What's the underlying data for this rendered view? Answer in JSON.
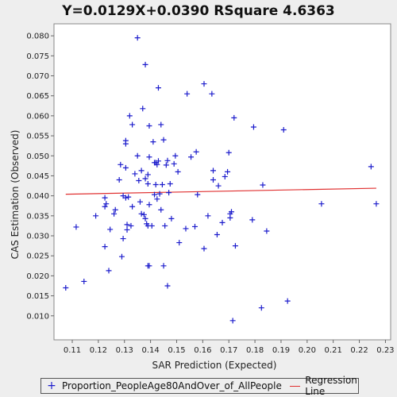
{
  "chart_data": {
    "type": "scatter",
    "title": "Y=0.0129X+0.0390    RSquare 4.6363",
    "xlabel": "SAR Prediction (Expected)",
    "ylabel": "CAS Estimation (Observed)",
    "xlim": [
      0.103,
      0.232
    ],
    "ylim": [
      0.004,
      0.083
    ],
    "x_ticks": [
      "0.11",
      "0.12",
      "0.13",
      "0.14",
      "0.15",
      "0.16",
      "0.17",
      "0.18",
      "0.19",
      "0.20",
      "0.21",
      "0.22",
      "0.23"
    ],
    "y_ticks": [
      "0.010",
      "0.015",
      "0.020",
      "0.025",
      "0.030",
      "0.035",
      "0.040",
      "0.045",
      "0.050",
      "0.055",
      "0.060",
      "0.065",
      "0.070",
      "0.075",
      "0.080"
    ],
    "grid": false,
    "legend_position": "bottom",
    "series": [
      {
        "name": "Proportion_PeopleAge80AndOver_of_AllPeople",
        "marker": "plus",
        "color": "#1c1ccc",
        "points": [
          [
            0.1075,
            0.017
          ],
          [
            0.1115,
            0.0322
          ],
          [
            0.1145,
            0.0186
          ],
          [
            0.119,
            0.035
          ],
          [
            0.1225,
            0.0395
          ],
          [
            0.1225,
            0.0373
          ],
          [
            0.1225,
            0.0273
          ],
          [
            0.123,
            0.038
          ],
          [
            0.124,
            0.0213
          ],
          [
            0.1245,
            0.0316
          ],
          [
            0.126,
            0.0355
          ],
          [
            0.1265,
            0.0365
          ],
          [
            0.128,
            0.044
          ],
          [
            0.1285,
            0.0478
          ],
          [
            0.129,
            0.0248
          ],
          [
            0.1295,
            0.0293
          ],
          [
            0.1295,
            0.04
          ],
          [
            0.1305,
            0.0538
          ],
          [
            0.1305,
            0.053
          ],
          [
            0.1305,
            0.047
          ],
          [
            0.1305,
            0.0395
          ],
          [
            0.131,
            0.0315
          ],
          [
            0.131,
            0.0328
          ],
          [
            0.1315,
            0.0397
          ],
          [
            0.132,
            0.06
          ],
          [
            0.1325,
            0.0325
          ],
          [
            0.133,
            0.0578
          ],
          [
            0.133,
            0.0373
          ],
          [
            0.134,
            0.0455
          ],
          [
            0.135,
            0.0795
          ],
          [
            0.135,
            0.05
          ],
          [
            0.1355,
            0.0438
          ],
          [
            0.136,
            0.0385
          ],
          [
            0.1365,
            0.0463
          ],
          [
            0.1365,
            0.0355
          ],
          [
            0.137,
            0.0618
          ],
          [
            0.1375,
            0.0353
          ],
          [
            0.138,
            0.0728
          ],
          [
            0.138,
            0.0443
          ],
          [
            0.138,
            0.0343
          ],
          [
            0.1385,
            0.033
          ],
          [
            0.139,
            0.0453
          ],
          [
            0.139,
            0.043
          ],
          [
            0.139,
            0.0325
          ],
          [
            0.139,
            0.0225
          ],
          [
            0.1395,
            0.0575
          ],
          [
            0.1395,
            0.0497
          ],
          [
            0.1395,
            0.0378
          ],
          [
            0.1395,
            0.0225
          ],
          [
            0.1405,
            0.0325
          ],
          [
            0.141,
            0.0535
          ],
          [
            0.1415,
            0.0483
          ],
          [
            0.1415,
            0.0403
          ],
          [
            0.142,
            0.0483
          ],
          [
            0.142,
            0.0428
          ],
          [
            0.1425,
            0.0392
          ],
          [
            0.1425,
            0.0478
          ],
          [
            0.143,
            0.0487
          ],
          [
            0.143,
            0.067
          ],
          [
            0.1435,
            0.0405
          ],
          [
            0.144,
            0.0578
          ],
          [
            0.144,
            0.0365
          ],
          [
            0.1445,
            0.0428
          ],
          [
            0.145,
            0.054
          ],
          [
            0.145,
            0.0225
          ],
          [
            0.1455,
            0.0325
          ],
          [
            0.146,
            0.0477
          ],
          [
            0.1465,
            0.0488
          ],
          [
            0.1465,
            0.0175
          ],
          [
            0.147,
            0.0408
          ],
          [
            0.1475,
            0.043
          ],
          [
            0.148,
            0.0343
          ],
          [
            0.149,
            0.048
          ],
          [
            0.1495,
            0.05
          ],
          [
            0.1505,
            0.046
          ],
          [
            0.151,
            0.0283
          ],
          [
            0.1535,
            0.0318
          ],
          [
            0.154,
            0.0655
          ],
          [
            0.1555,
            0.0497
          ],
          [
            0.157,
            0.0323
          ],
          [
            0.1575,
            0.051
          ],
          [
            0.158,
            0.0403
          ],
          [
            0.1605,
            0.068
          ],
          [
            0.1605,
            0.0268
          ],
          [
            0.162,
            0.035
          ],
          [
            0.1635,
            0.0655
          ],
          [
            0.164,
            0.044
          ],
          [
            0.164,
            0.0463
          ],
          [
            0.1655,
            0.0303
          ],
          [
            0.166,
            0.0425
          ],
          [
            0.1675,
            0.0333
          ],
          [
            0.1685,
            0.0448
          ],
          [
            0.1695,
            0.046
          ],
          [
            0.17,
            0.0508
          ],
          [
            0.1705,
            0.0345
          ],
          [
            0.1705,
            0.0355
          ],
          [
            0.171,
            0.036
          ],
          [
            0.1715,
            0.0088
          ],
          [
            0.172,
            0.0595
          ],
          [
            0.1725,
            0.0275
          ],
          [
            0.179,
            0.034
          ],
          [
            0.1795,
            0.0572
          ],
          [
            0.1825,
            0.012
          ],
          [
            0.183,
            0.0427
          ],
          [
            0.1845,
            0.0312
          ],
          [
            0.191,
            0.0565
          ],
          [
            0.1925,
            0.0137
          ],
          [
            0.2055,
            0.038
          ],
          [
            0.2245,
            0.0473
          ],
          [
            0.2265,
            0.038
          ]
        ]
      },
      {
        "name": "Regression Line",
        "type": "line",
        "color": "#e03030",
        "points": [
          [
            0.1075,
            0.0404
          ],
          [
            0.2265,
            0.0419
          ]
        ]
      }
    ]
  }
}
